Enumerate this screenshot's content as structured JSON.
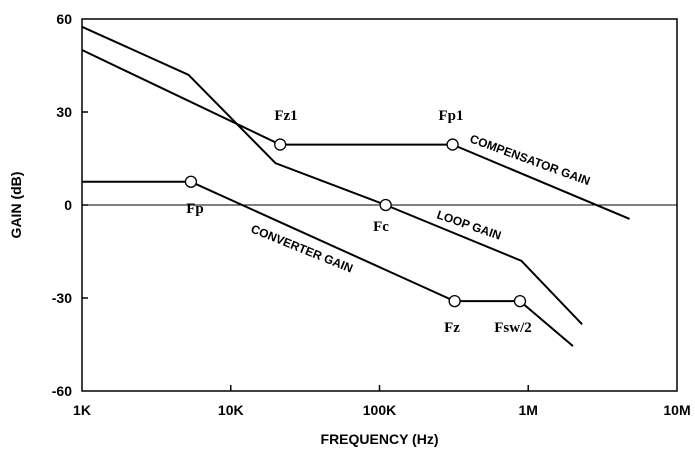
{
  "chart_data": {
    "type": "line",
    "xscale": "log",
    "xlim": [
      1000,
      10000000
    ],
    "ylim": [
      -60,
      60
    ],
    "grid": false,
    "legend": "none",
    "xlabel": "FREQUENCY (Hz)",
    "ylabel": "GAIN (dB)",
    "x_tick_labels": [
      {
        "value": 1000,
        "label": "1K"
      },
      {
        "value": 10000,
        "label": "10K"
      },
      {
        "value": 100000,
        "label": "100K"
      },
      {
        "value": 1000000,
        "label": "1M"
      },
      {
        "value": 10000000,
        "label": "10M"
      }
    ],
    "y_tick_labels": [
      {
        "value": 60,
        "label": "60"
      },
      {
        "value": 30,
        "label": "30"
      },
      {
        "value": 0,
        "label": "0"
      },
      {
        "value": -30,
        "label": "-30"
      },
      {
        "value": -60,
        "label": "-60"
      }
    ],
    "series": [
      {
        "points": [
          [
            1000,
            57.5
          ],
          [
            5200,
            42
          ],
          [
            20000,
            13.5
          ],
          [
            110000,
            0
          ],
          [
            900000,
            -18
          ],
          [
            2300000,
            -38.5
          ]
        ]
      },
      {
        "points": [
          [
            1000,
            50
          ],
          [
            21500,
            19.5
          ],
          [
            310000,
            19.5
          ],
          [
            4800000,
            -4.5
          ]
        ]
      },
      {
        "points": [
          [
            1000,
            7.5
          ],
          [
            5400,
            7.5
          ],
          [
            320000,
            -31
          ],
          [
            880000,
            -31
          ],
          [
            2000000,
            -45.5
          ]
        ]
      }
    ],
    "markers": [
      {
        "x": 21500,
        "y": 19.5
      },
      {
        "x": 310000,
        "y": 19.5
      },
      {
        "x": 5400,
        "y": 7.5
      },
      {
        "x": 110000,
        "y": 0
      },
      {
        "x": 320000,
        "y": -31
      },
      {
        "x": 880000,
        "y": -31
      }
    ],
    "annotations": [
      {
        "id": "fz1",
        "text": "Fz1",
        "x": 21500,
        "y": 19.5
      },
      {
        "id": "fp1",
        "text": "Fp1",
        "x": 310000,
        "y": 19.5
      },
      {
        "id": "fp",
        "text": "Fp",
        "x": 5400,
        "y": 7.5
      },
      {
        "id": "fc",
        "text": "Fc",
        "x": 110000,
        "y": 0
      },
      {
        "id": "fz",
        "text": "Fz",
        "x": 320000,
        "y": -31
      },
      {
        "id": "fsw2",
        "text": "Fsw/2",
        "x": 880000,
        "y": -31
      },
      {
        "id": "compensator",
        "text": "COMPENSATOR GAIN"
      },
      {
        "id": "loop",
        "text": "LOOP GAIN"
      },
      {
        "id": "converter",
        "text": "CONVERTER GAIN"
      }
    ]
  }
}
